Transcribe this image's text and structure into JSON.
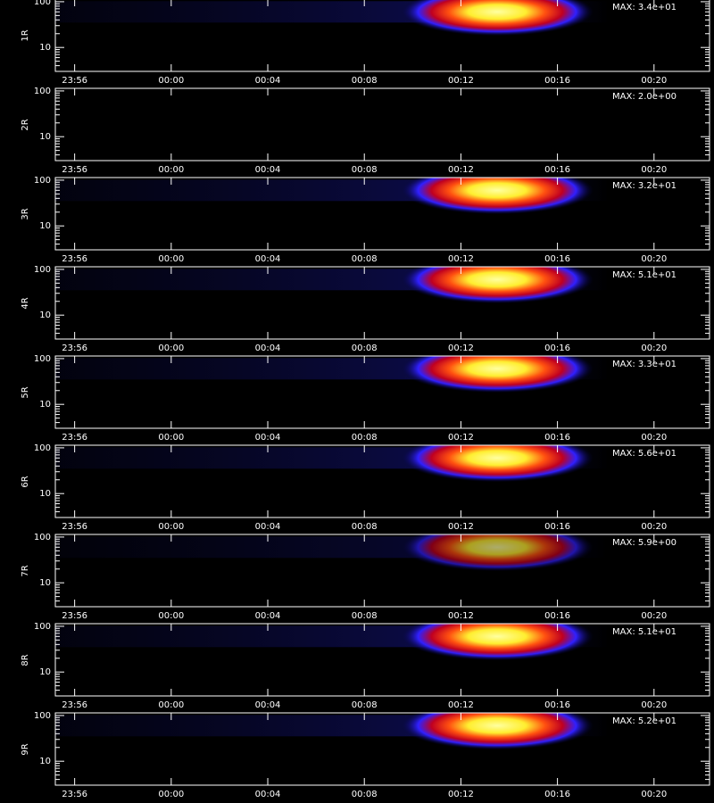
{
  "chart_data": [
    {
      "type": "spectrogram",
      "ylabel": "1R",
      "annotation": {
        "value": 34,
        "label": "MAX: 3.4e+01"
      },
      "log_y": true,
      "ylim": [
        3,
        114
      ],
      "yticks": [
        10,
        100
      ],
      "xlim": [
        -4.8,
        22.3
      ],
      "xticks": [
        {
          "value": -4,
          "label": "23:56"
        },
        {
          "value": 0,
          "label": "00:00"
        },
        {
          "value": 4,
          "label": "00:04"
        },
        {
          "value": 8,
          "label": "00:08"
        },
        {
          "value": 12,
          "label": "00:12"
        },
        {
          "value": 16,
          "label": "00:16"
        },
        {
          "value": 20,
          "label": "00:20"
        }
      ]
    },
    {
      "type": "spectrogram",
      "ylabel": "2R",
      "annotation": {
        "value": 2.0,
        "label": "MAX: 2.0e+00"
      },
      "log_y": true,
      "ylim": [
        3,
        114
      ],
      "yticks": [
        10,
        100
      ],
      "xlim": [
        -4.8,
        22.3
      ],
      "xticks": [
        {
          "value": -4,
          "label": "23:56"
        },
        {
          "value": 0,
          "label": "00:00"
        },
        {
          "value": 4,
          "label": "00:04"
        },
        {
          "value": 8,
          "label": "00:08"
        },
        {
          "value": 12,
          "label": "00:12"
        },
        {
          "value": 16,
          "label": "00:16"
        },
        {
          "value": 20,
          "label": "00:20"
        }
      ]
    },
    {
      "type": "spectrogram",
      "ylabel": "3R",
      "annotation": {
        "value": 32,
        "label": "MAX: 3.2e+01"
      },
      "log_y": true,
      "ylim": [
        3,
        114
      ],
      "yticks": [
        10,
        100
      ],
      "xlim": [
        -4.8,
        22.3
      ],
      "xticks": [
        {
          "value": -4,
          "label": "23:56"
        },
        {
          "value": 0,
          "label": "00:00"
        },
        {
          "value": 4,
          "label": "00:04"
        },
        {
          "value": 8,
          "label": "00:08"
        },
        {
          "value": 12,
          "label": "00:12"
        },
        {
          "value": 16,
          "label": "00:16"
        },
        {
          "value": 20,
          "label": "00:20"
        }
      ]
    },
    {
      "type": "spectrogram",
      "ylabel": "4R",
      "annotation": {
        "value": 51,
        "label": "MAX: 5.1e+01"
      },
      "log_y": true,
      "ylim": [
        3,
        114
      ],
      "yticks": [
        10,
        100
      ],
      "xlim": [
        -4.8,
        22.3
      ],
      "xticks": [
        {
          "value": -4,
          "label": "23:56"
        },
        {
          "value": 0,
          "label": "00:00"
        },
        {
          "value": 4,
          "label": "00:04"
        },
        {
          "value": 8,
          "label": "00:08"
        },
        {
          "value": 12,
          "label": "00:12"
        },
        {
          "value": 16,
          "label": "00:16"
        },
        {
          "value": 20,
          "label": "00:20"
        }
      ]
    },
    {
      "type": "spectrogram",
      "ylabel": "5R",
      "annotation": {
        "value": 33,
        "label": "MAX: 3.3e+01"
      },
      "log_y": true,
      "ylim": [
        3,
        114
      ],
      "yticks": [
        10,
        100
      ],
      "xlim": [
        -4.8,
        22.3
      ],
      "xticks": [
        {
          "value": -4,
          "label": "23:56"
        },
        {
          "value": 0,
          "label": "00:00"
        },
        {
          "value": 4,
          "label": "00:04"
        },
        {
          "value": 8,
          "label": "00:08"
        },
        {
          "value": 12,
          "label": "00:12"
        },
        {
          "value": 16,
          "label": "00:16"
        },
        {
          "value": 20,
          "label": "00:20"
        }
      ]
    },
    {
      "type": "spectrogram",
      "ylabel": "6R",
      "annotation": {
        "value": 56,
        "label": "MAX: 5.6e+01"
      },
      "log_y": true,
      "ylim": [
        3,
        114
      ],
      "yticks": [
        10,
        100
      ],
      "xlim": [
        -4.8,
        22.3
      ],
      "xticks": [
        {
          "value": -4,
          "label": "23:56"
        },
        {
          "value": 0,
          "label": "00:00"
        },
        {
          "value": 4,
          "label": "00:04"
        },
        {
          "value": 8,
          "label": "00:08"
        },
        {
          "value": 12,
          "label": "00:12"
        },
        {
          "value": 16,
          "label": "00:16"
        },
        {
          "value": 20,
          "label": "00:20"
        }
      ]
    },
    {
      "type": "spectrogram",
      "ylabel": "7R",
      "annotation": {
        "value": 5.9,
        "label": "MAX: 5.9e+00"
      },
      "log_y": true,
      "ylim": [
        3,
        114
      ],
      "yticks": [
        10,
        100
      ],
      "xlim": [
        -4.8,
        22.3
      ],
      "xticks": [
        {
          "value": -4,
          "label": "23:56"
        },
        {
          "value": 0,
          "label": "00:00"
        },
        {
          "value": 4,
          "label": "00:04"
        },
        {
          "value": 8,
          "label": "00:08"
        },
        {
          "value": 12,
          "label": "00:12"
        },
        {
          "value": 16,
          "label": "00:16"
        },
        {
          "value": 20,
          "label": "00:20"
        }
      ]
    },
    {
      "type": "spectrogram",
      "ylabel": "8R",
      "annotation": {
        "value": 51,
        "label": "MAX: 5.1e+01"
      },
      "log_y": true,
      "ylim": [
        3,
        114
      ],
      "yticks": [
        10,
        100
      ],
      "xlim": [
        -4.8,
        22.3
      ],
      "xticks": [
        {
          "value": -4,
          "label": "23:56"
        },
        {
          "value": 0,
          "label": "00:00"
        },
        {
          "value": 4,
          "label": "00:04"
        },
        {
          "value": 8,
          "label": "00:08"
        },
        {
          "value": 12,
          "label": "00:12"
        },
        {
          "value": 16,
          "label": "00:16"
        },
        {
          "value": 20,
          "label": "00:20"
        }
      ]
    },
    {
      "type": "spectrogram",
      "ylabel": "9R",
      "annotation": {
        "value": 52,
        "label": "MAX: 5.2e+01"
      },
      "log_y": true,
      "ylim": [
        3,
        114
      ],
      "yticks": [
        10,
        100
      ],
      "xlim": [
        -4.8,
        22.3
      ],
      "xticks": [
        {
          "value": -4,
          "label": "23:56"
        },
        {
          "value": 0,
          "label": "00:00"
        },
        {
          "value": 4,
          "label": "00:04"
        },
        {
          "value": 8,
          "label": "00:08"
        },
        {
          "value": 12,
          "label": "00:12"
        },
        {
          "value": 16,
          "label": "00:16"
        },
        {
          "value": 20,
          "label": "00:20"
        }
      ]
    }
  ]
}
